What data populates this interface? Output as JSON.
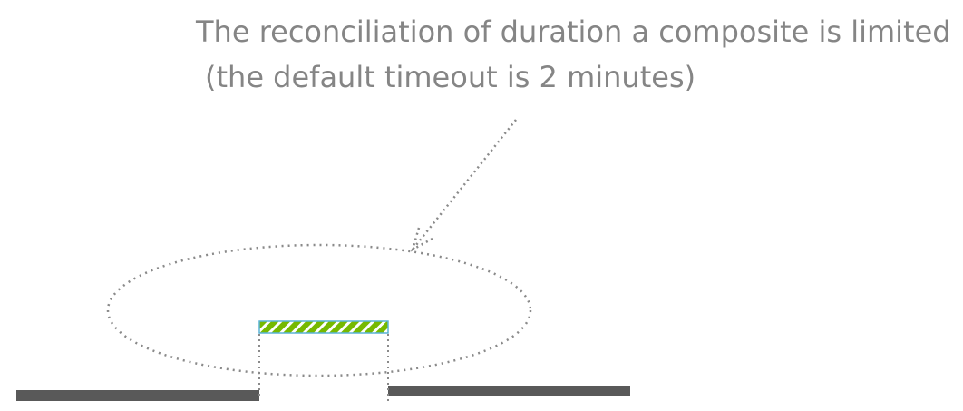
{
  "annotation": {
    "line1": "The reconciliation of duration a composite is limited",
    "line2": "(the default timeout is 2 minutes)"
  },
  "colors": {
    "text": "#858585",
    "timeline": "#595959",
    "dotted": "#8a8a8a",
    "hatch_green": "#76b900",
    "hatch_blue": "#5ab4d6",
    "background": "#ffffff"
  }
}
